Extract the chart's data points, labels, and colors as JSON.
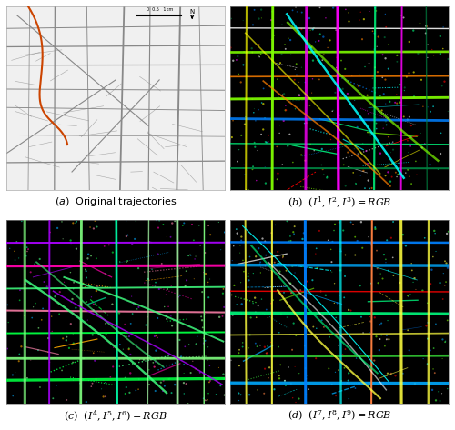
{
  "title": "",
  "figsize": [
    5.0,
    4.73
  ],
  "dpi": 100,
  "background_color": "#ffffff",
  "subplot_labels": [
    "(a)  Original trajectories",
    "(b)  $(I^1, I^2, I^3) = RGB$",
    "(c)  $(I^4, I^5, I^6) = RGB$",
    "(d)  $(I^7, I^8, I^9) = RGB$"
  ],
  "label_fontsize": 8,
  "map_bg": "#f0f0f0",
  "dfi_bg": "#000000",
  "road_color": "#888888",
  "highlight_color": "#cc4400",
  "grid_color": "#dddddd"
}
